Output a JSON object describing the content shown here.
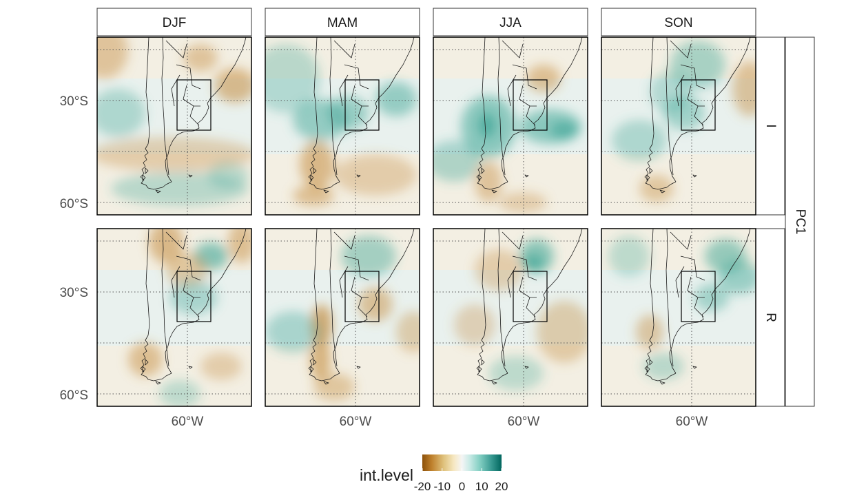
{
  "facets": {
    "columns": [
      "DJF",
      "MAM",
      "JJA",
      "SON"
    ],
    "rows": [
      "I",
      "R"
    ],
    "outer_row_label": "PC1"
  },
  "axes": {
    "y_ticks": [
      "30°S",
      "60°S"
    ],
    "x_ticks": [
      "60°W"
    ]
  },
  "legend": {
    "title": "int.level",
    "ticks": [
      "-20",
      "-10",
      "0",
      "10",
      "20"
    ],
    "palette": [
      "#8c510a",
      "#bf812d",
      "#dfc27d",
      "#f6e8c3",
      "#f5f5f5",
      "#c7eae5",
      "#80cdc1",
      "#35978f",
      "#01665e"
    ]
  },
  "colors": {
    "negative": "#c48a3a",
    "neutral": "#f5f2ea",
    "positive": "#3aa494",
    "coast": "#1a1a1a",
    "box": "#000000",
    "grid": "#555555"
  },
  "chart_data": {
    "type": "heatmap",
    "title": "",
    "xlabel": "",
    "ylabel": "",
    "facet_cols": [
      "DJF",
      "MAM",
      "JJA",
      "SON"
    ],
    "facet_rows": [
      "I",
      "R"
    ],
    "legend_title": "int.level",
    "value_range": [
      -20,
      20
    ],
    "grid_lat": [
      -15,
      -30,
      -45,
      -60
    ],
    "grid_lon": [
      -60
    ],
    "region_box": {
      "lon": [
        -64,
        -50
      ],
      "lat": [
        -40,
        -22
      ]
    }
  }
}
